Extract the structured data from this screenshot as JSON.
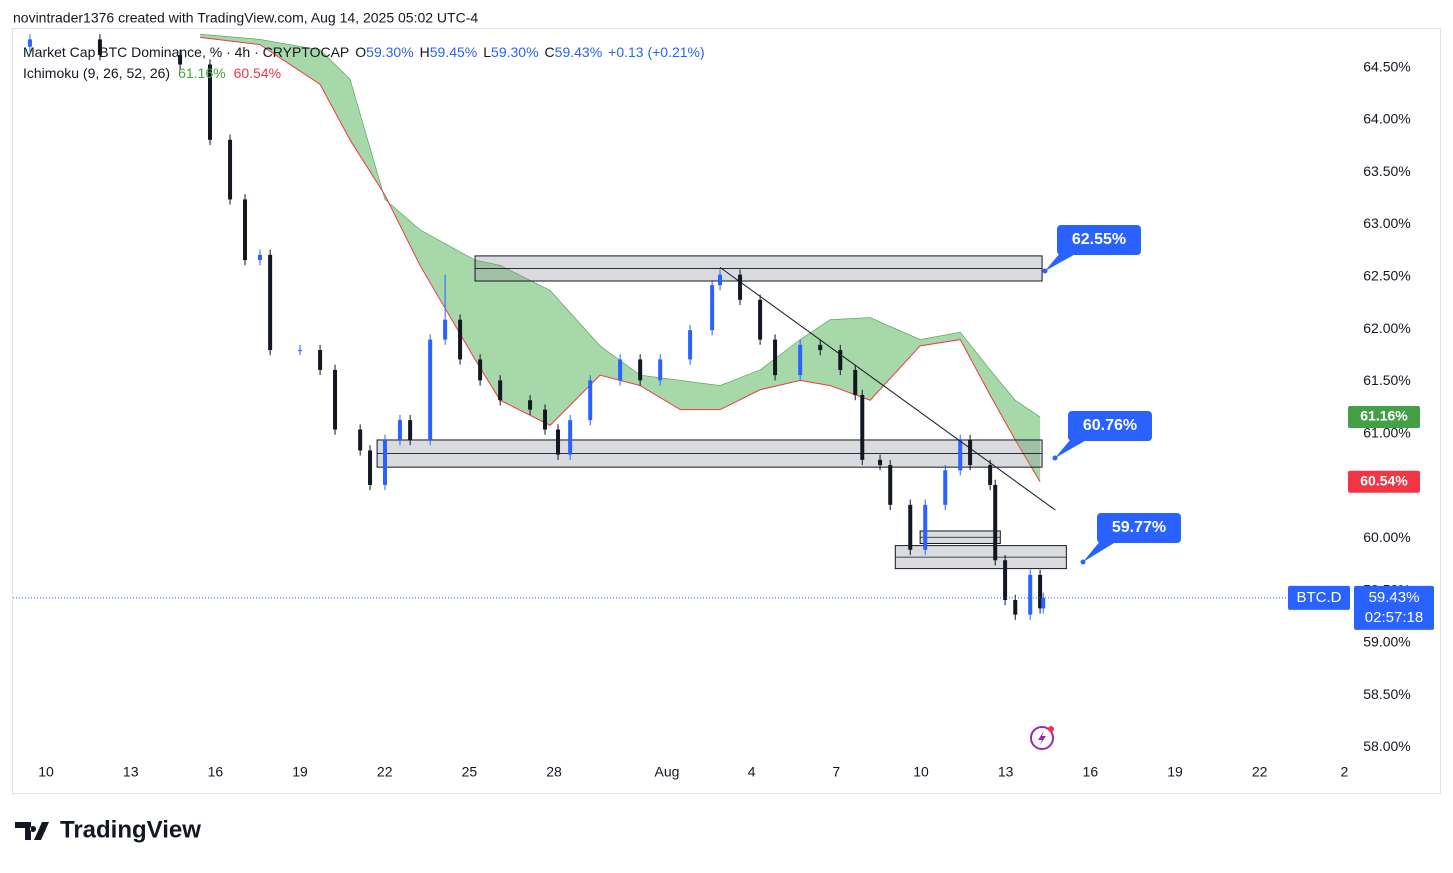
{
  "header": {
    "credit": "novintrader1376 created with TradingView.com, Aug 14, 2025 05:02 UTC-4"
  },
  "chart_data": {
    "type": "candlestick",
    "title": "Market Cap BTC Dominance, % · 4h · CRYPTOCAP",
    "ohlc_legend": [
      {
        "label": "O",
        "value": "59.30%"
      },
      {
        "label": "H",
        "value": "59.45%"
      },
      {
        "label": "L",
        "value": "59.30%"
      },
      {
        "label": "C",
        "value": "59.43%"
      }
    ],
    "change": "+0.13 (+0.21%)",
    "x": [
      9.43,
      11.91,
      14.75,
      15.81,
      16.52,
      17.05,
      17.58,
      17.94,
      19.0,
      19.71,
      20.24,
      21.13,
      21.48,
      22.01,
      22.54,
      22.9,
      23.61,
      24.14,
      24.67,
      25.38,
      26.09,
      27.15,
      27.68,
      28.14,
      28.57,
      29.28,
      30.34,
      31.05,
      31.76,
      32.82,
      33.6,
      33.88,
      34.59,
      35.3,
      35.83,
      36.72,
      37.43,
      38.14,
      38.67,
      38.92,
      39.55,
      39.91,
      40.62,
      41.15,
      41.86,
      42.39,
      42.74,
      43.45,
      43.63,
      43.98,
      44.34,
      44.87,
      45.22,
      45.33
    ],
    "open": [
      64.7,
      64.77,
      64.62,
      64.53,
      63.81,
      63.24,
      62.66,
      62.71,
      61.8,
      61.8,
      61.61,
      61.04,
      60.84,
      60.51,
      60.94,
      61.13,
      60.94,
      61.9,
      62.09,
      61.71,
      61.51,
      61.32,
      61.23,
      61.04,
      60.8,
      61.13,
      61.51,
      61.71,
      61.51,
      61.71,
      61.99,
      62.42,
      62.52,
      62.28,
      61.9,
      61.56,
      61.85,
      61.8,
      61.61,
      61.37,
      60.75,
      60.7,
      60.32,
      59.89,
      60.32,
      60.65,
      60.94,
      60.7,
      60.51,
      59.79,
      59.41,
      59.27,
      59.65,
      59.33
    ],
    "high": [
      64.82,
      64.82,
      64.67,
      64.58,
      63.86,
      63.29,
      62.76,
      62.76,
      61.85,
      61.85,
      61.66,
      61.09,
      60.89,
      60.99,
      61.18,
      61.18,
      61.95,
      62.52,
      62.14,
      61.76,
      61.56,
      61.37,
      61.28,
      61.09,
      61.18,
      61.56,
      61.76,
      61.76,
      61.76,
      62.04,
      62.47,
      62.57,
      62.57,
      62.33,
      61.95,
      61.9,
      61.9,
      61.85,
      61.66,
      61.42,
      60.8,
      60.75,
      60.37,
      60.37,
      60.7,
      60.99,
      60.99,
      60.75,
      60.56,
      59.84,
      59.46,
      59.7,
      59.7,
      59.48
    ],
    "low": [
      64.65,
      64.57,
      64.48,
      63.76,
      63.19,
      62.61,
      62.61,
      61.75,
      61.75,
      61.56,
      60.99,
      60.79,
      60.46,
      60.46,
      60.89,
      60.89,
      60.89,
      61.85,
      61.66,
      61.46,
      61.27,
      61.18,
      60.99,
      60.75,
      60.75,
      61.08,
      61.46,
      61.46,
      61.46,
      61.66,
      61.94,
      62.37,
      62.23,
      61.85,
      61.51,
      61.51,
      61.75,
      61.56,
      61.32,
      60.7,
      60.65,
      60.27,
      59.84,
      59.84,
      60.27,
      60.6,
      60.65,
      60.46,
      59.74,
      59.36,
      59.22,
      59.22,
      59.28,
      59.28
    ],
    "close": [
      64.77,
      64.62,
      64.53,
      63.81,
      63.24,
      62.66,
      62.71,
      61.8,
      61.8,
      61.61,
      61.04,
      60.84,
      60.51,
      60.94,
      61.13,
      60.94,
      61.9,
      62.09,
      61.71,
      61.51,
      61.32,
      61.23,
      61.04,
      60.8,
      61.13,
      61.51,
      61.71,
      61.51,
      61.71,
      61.99,
      62.42,
      62.52,
      62.28,
      61.9,
      61.56,
      61.85,
      61.8,
      61.61,
      61.37,
      60.75,
      60.7,
      60.32,
      59.89,
      60.32,
      60.65,
      60.94,
      60.7,
      60.51,
      59.79,
      59.41,
      59.27,
      59.65,
      59.33,
      59.43
    ],
    "up_color": "#2962ff",
    "down_color": "#131722",
    "xlim": [
      8.83,
      56.2
    ],
    "xticks": [
      10,
      13,
      16,
      19,
      22,
      25,
      28,
      {
        "value": 32,
        "label": "Aug"
      },
      {
        "value": 35,
        "label": "4"
      },
      {
        "value": 38,
        "label": "7"
      },
      {
        "value": 41,
        "label": "10"
      },
      {
        "value": 44,
        "label": "13"
      },
      {
        "value": 47,
        "label": "16"
      },
      {
        "value": 50,
        "label": "19"
      },
      {
        "value": 53,
        "label": "22"
      },
      {
        "value": 56,
        "label": "2"
      }
    ],
    "ylim": [
      57.88,
      64.86
    ],
    "yticks": [
      {
        "value": 58,
        "label": "58.00%"
      },
      {
        "value": 58.5,
        "label": "58.50%"
      },
      {
        "value": 59,
        "label": "59.00%"
      },
      {
        "value": 59.5,
        "label": "59.50%"
      },
      {
        "value": 60,
        "label": "60.00%"
      },
      {
        "value": 60.5,
        "label": "60.50%"
      },
      {
        "value": 61,
        "label": "61.00%"
      },
      {
        "value": 61.5,
        "label": "61.50%"
      },
      {
        "value": 62,
        "label": "62.00%"
      },
      {
        "value": 62.5,
        "label": "62.50%"
      },
      {
        "value": 63,
        "label": "63.00%"
      },
      {
        "value": 63.5,
        "label": "63.50%"
      },
      {
        "value": 64,
        "label": "64.00%"
      },
      {
        "value": 64.5,
        "label": "64.50%"
      }
    ],
    "ichimoku": {
      "name": "Ichimoku (9, 26, 52, 26)",
      "x": [
        15.46,
        17.58,
        19.71,
        20.77,
        22.01,
        23.25,
        25.2,
        26.09,
        27.86,
        29.63,
        31.05,
        32.47,
        33.88,
        35.3,
        36.72,
        37.78,
        39.2,
        40.97,
        42.39,
        43.45,
        44.34,
        45.22
      ],
      "span_a": [
        64.82,
        64.77,
        64.67,
        64.39,
        63.24,
        62.95,
        62.66,
        62.61,
        62.37,
        61.84,
        61.56,
        61.51,
        61.46,
        61.61,
        61.9,
        62.09,
        62.11,
        61.9,
        61.97,
        61.61,
        61.32,
        61.16
      ],
      "span_b": [
        64.79,
        64.72,
        64.34,
        63.81,
        63.28,
        62.61,
        61.71,
        61.32,
        61.08,
        61.56,
        61.46,
        61.23,
        61.23,
        61.42,
        61.51,
        61.46,
        61.32,
        61.84,
        61.9,
        61.37,
        60.94,
        60.54
      ],
      "span_a_label": "61.16%",
      "span_b_label": "60.54%",
      "span_a_color": "#43a047",
      "span_b_color": "#f23645",
      "fill_color": "#81c784"
    },
    "zones": [
      {
        "x": [
          25.2,
          45.29
        ],
        "y": [
          62.46,
          62.7
        ]
      },
      {
        "x": [
          21.73,
          45.29
        ],
        "y": [
          60.68,
          60.94
        ]
      },
      {
        "x": [
          40.97,
          43.81
        ],
        "y": [
          59.95,
          60.07
        ]
      },
      {
        "x": [
          40.09,
          46.15
        ],
        "y": [
          59.71,
          59.93
        ]
      }
    ],
    "trendline": {
      "x": [
        33.88,
        45.76
      ],
      "y": [
        62.59,
        60.27
      ]
    },
    "callouts": [
      "62.55%",
      "60.76%",
      "59.77%"
    ],
    "last_price": {
      "value": 59.43,
      "label": "59.43%"
    },
    "countdown": "02:57:18",
    "symbol_tag": "BTC.D"
  },
  "footer": {
    "brand": "TradingView"
  }
}
